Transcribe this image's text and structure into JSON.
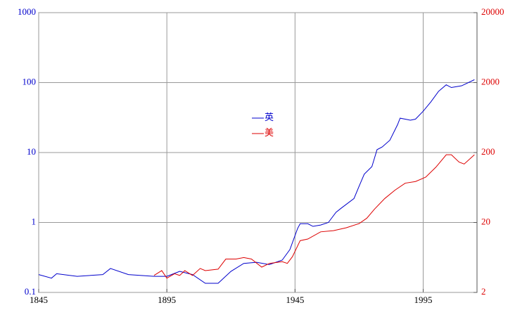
{
  "chart_data": {
    "type": "line",
    "xlim": [
      1845,
      2016
    ],
    "xticks": [
      1845,
      1895,
      1945,
      1995
    ],
    "ylim": [
      0.1,
      1000
    ],
    "yticks": [
      0.1,
      1,
      10,
      100,
      1000
    ],
    "ylog": true,
    "ycolor": "#0000cc",
    "y2lim": [
      2,
      20000
    ],
    "y2ticks": [
      2,
      20,
      200,
      2000,
      20000
    ],
    "y2log": true,
    "y2color": "#dd0000",
    "grid": true,
    "legend": "center",
    "series": [
      {
        "name": "英",
        "color": "#0000cc",
        "axis": "y",
        "x": [
          1845,
          1850,
          1852,
          1860,
          1870,
          1873,
          1880,
          1890,
          1895,
          1900,
          1905,
          1910,
          1915,
          1920,
          1925,
          1930,
          1935,
          1940,
          1943,
          1946,
          1947,
          1950,
          1952,
          1955,
          1958,
          1961,
          1963,
          1968,
          1970,
          1972,
          1975,
          1977,
          1979,
          1982,
          1985,
          1986,
          1988,
          1990,
          1992,
          1995,
          1998,
          2001,
          2004,
          2006,
          2010,
          2015
        ],
        "values": [
          0.18,
          0.16,
          0.185,
          0.17,
          0.18,
          0.22,
          0.18,
          0.17,
          0.17,
          0.2,
          0.18,
          0.135,
          0.135,
          0.2,
          0.26,
          0.27,
          0.25,
          0.29,
          0.41,
          0.82,
          0.96,
          0.96,
          0.88,
          0.92,
          1.0,
          1.4,
          1.6,
          2.2,
          3.3,
          4.9,
          6.3,
          11,
          12,
          15,
          25,
          31,
          30,
          29,
          30,
          39,
          53,
          75,
          93,
          85,
          90,
          110
        ]
      },
      {
        "name": "美",
        "color": "#dd0000",
        "axis": "y2",
        "x": [
          1890,
          1893,
          1895,
          1898,
          1900,
          1902,
          1905,
          1908,
          1910,
          1915,
          1918,
          1922,
          1925,
          1928,
          1932,
          1935,
          1940,
          1942,
          1944,
          1947,
          1950,
          1955,
          1960,
          1965,
          1970,
          1973,
          1976,
          1980,
          1984,
          1988,
          1992,
          1996,
          2000,
          2004,
          2006,
          2009,
          2011,
          2015
        ],
        "values": [
          3.5,
          4.1,
          3.2,
          3.7,
          3.5,
          4.1,
          3.5,
          4.4,
          4.1,
          4.3,
          6.0,
          6.0,
          6.3,
          6.0,
          4.6,
          5.2,
          5.5,
          5.2,
          6.5,
          11,
          11.6,
          14.7,
          15.3,
          16.8,
          19.3,
          23,
          31,
          44,
          58,
          73,
          77,
          89,
          124,
          186,
          186,
          146,
          137,
          186
        ]
      }
    ]
  }
}
